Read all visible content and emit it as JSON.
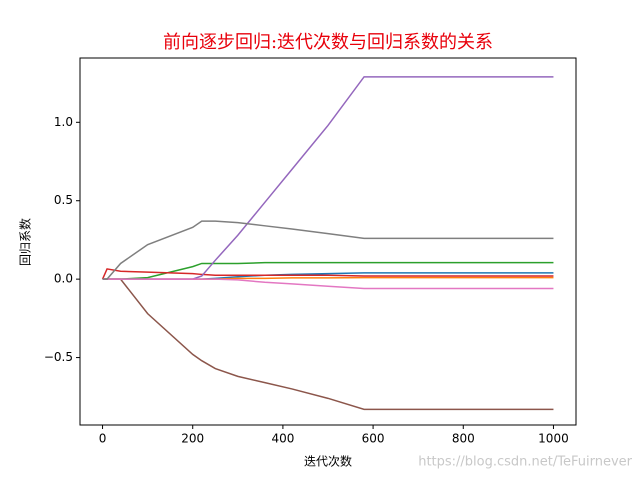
{
  "chart_data": {
    "type": "line",
    "title": "前向逐步回归:迭代次数与回归系数的关系",
    "x_label": "迭代次数",
    "y_label": "回归系数",
    "annotation": "https://blog.csdn.net/TeFuirnever",
    "x": [
      0,
      10,
      40,
      100,
      200,
      220,
      250,
      300,
      360,
      420,
      500,
      580,
      700,
      1000
    ],
    "series": [
      {
        "color": "#1f77b4",
        "values": [
          0,
          0,
          0,
          0,
          0,
          0,
          0.005,
          0.015,
          0.025,
          0.03,
          0.035,
          0.04,
          0.04,
          0.04
        ]
      },
      {
        "color": "#ff7f0e",
        "values": [
          0,
          0,
          0,
          0,
          0,
          0,
          0,
          0.005,
          0.005,
          0.008,
          0.008,
          0.01,
          0.01,
          0.01
        ]
      },
      {
        "color": "#2ca02c",
        "values": [
          0,
          0,
          0,
          0.01,
          0.08,
          0.1,
          0.1,
          0.1,
          0.105,
          0.105,
          0.105,
          0.105,
          0.105,
          0.105
        ]
      },
      {
        "color": "#d62728",
        "values": [
          0,
          0.065,
          0.05,
          0.045,
          0.035,
          0.03,
          0.025,
          0.025,
          0.025,
          0.025,
          0.025,
          0.02,
          0.02,
          0.02
        ]
      },
      {
        "color": "#9467bd",
        "values": [
          0,
          0,
          0,
          0,
          0,
          0.02,
          0.12,
          0.28,
          0.49,
          0.7,
          0.98,
          1.29,
          1.29,
          1.29
        ]
      },
      {
        "color": "#8c564b",
        "values": [
          0,
          0,
          0,
          -0.22,
          -0.48,
          -0.52,
          -0.57,
          -0.62,
          -0.66,
          -0.7,
          -0.76,
          -0.83,
          -0.83,
          -0.83
        ]
      },
      {
        "color": "#e377c2",
        "values": [
          0,
          0,
          0,
          0,
          0,
          0,
          0,
          -0.005,
          -0.02,
          -0.03,
          -0.045,
          -0.06,
          -0.06,
          -0.06
        ]
      },
      {
        "color": "#7f7f7f",
        "values": [
          0,
          0,
          0.1,
          0.22,
          0.33,
          0.37,
          0.37,
          0.36,
          0.34,
          0.32,
          0.29,
          0.26,
          0.26,
          0.26
        ]
      }
    ],
    "xlim": [
      -50,
      1050
    ],
    "ylim": [
      -0.93,
      1.41
    ],
    "xticks": [
      0,
      200,
      400,
      600,
      800,
      1000
    ],
    "yticks": [
      {
        "value": -0.5,
        "label": "−0.5"
      },
      {
        "value": 0,
        "label": "0.0"
      },
      0.5,
      {
        "value": 1,
        "label": "1.0"
      }
    ],
    "grid": false
  }
}
